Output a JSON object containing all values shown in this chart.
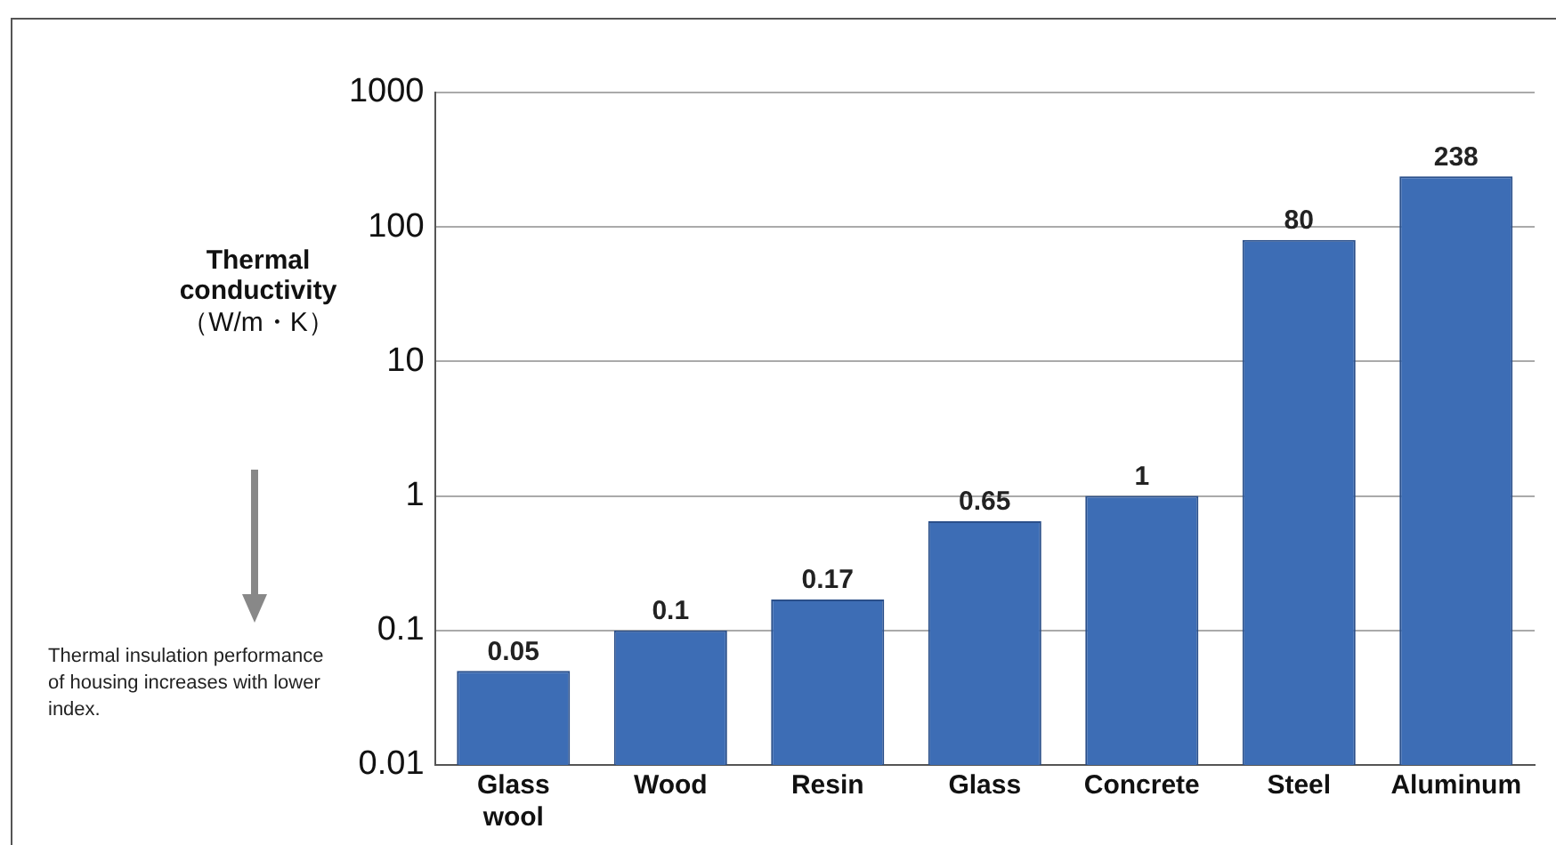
{
  "chart_data": {
    "type": "bar",
    "ylabel": "Thermal conductivity（W/m・K）",
    "categories": [
      "Glass wool",
      "Wood",
      "Resin",
      "Glass",
      "Concrete",
      "Steel",
      "Aluminum"
    ],
    "values": [
      0.05,
      0.1,
      0.17,
      0.65,
      1,
      80,
      238
    ],
    "color": "#3d6db5",
    "log": true,
    "ylim": [
      0.01,
      1000
    ],
    "yticks": [
      0.01,
      0.1,
      1,
      10,
      100,
      1000
    ],
    "grid": "y",
    "legend": false,
    "data_labels": true,
    "annotations": [
      "Thermal insulation performance of housing increases with lower index."
    ]
  }
}
